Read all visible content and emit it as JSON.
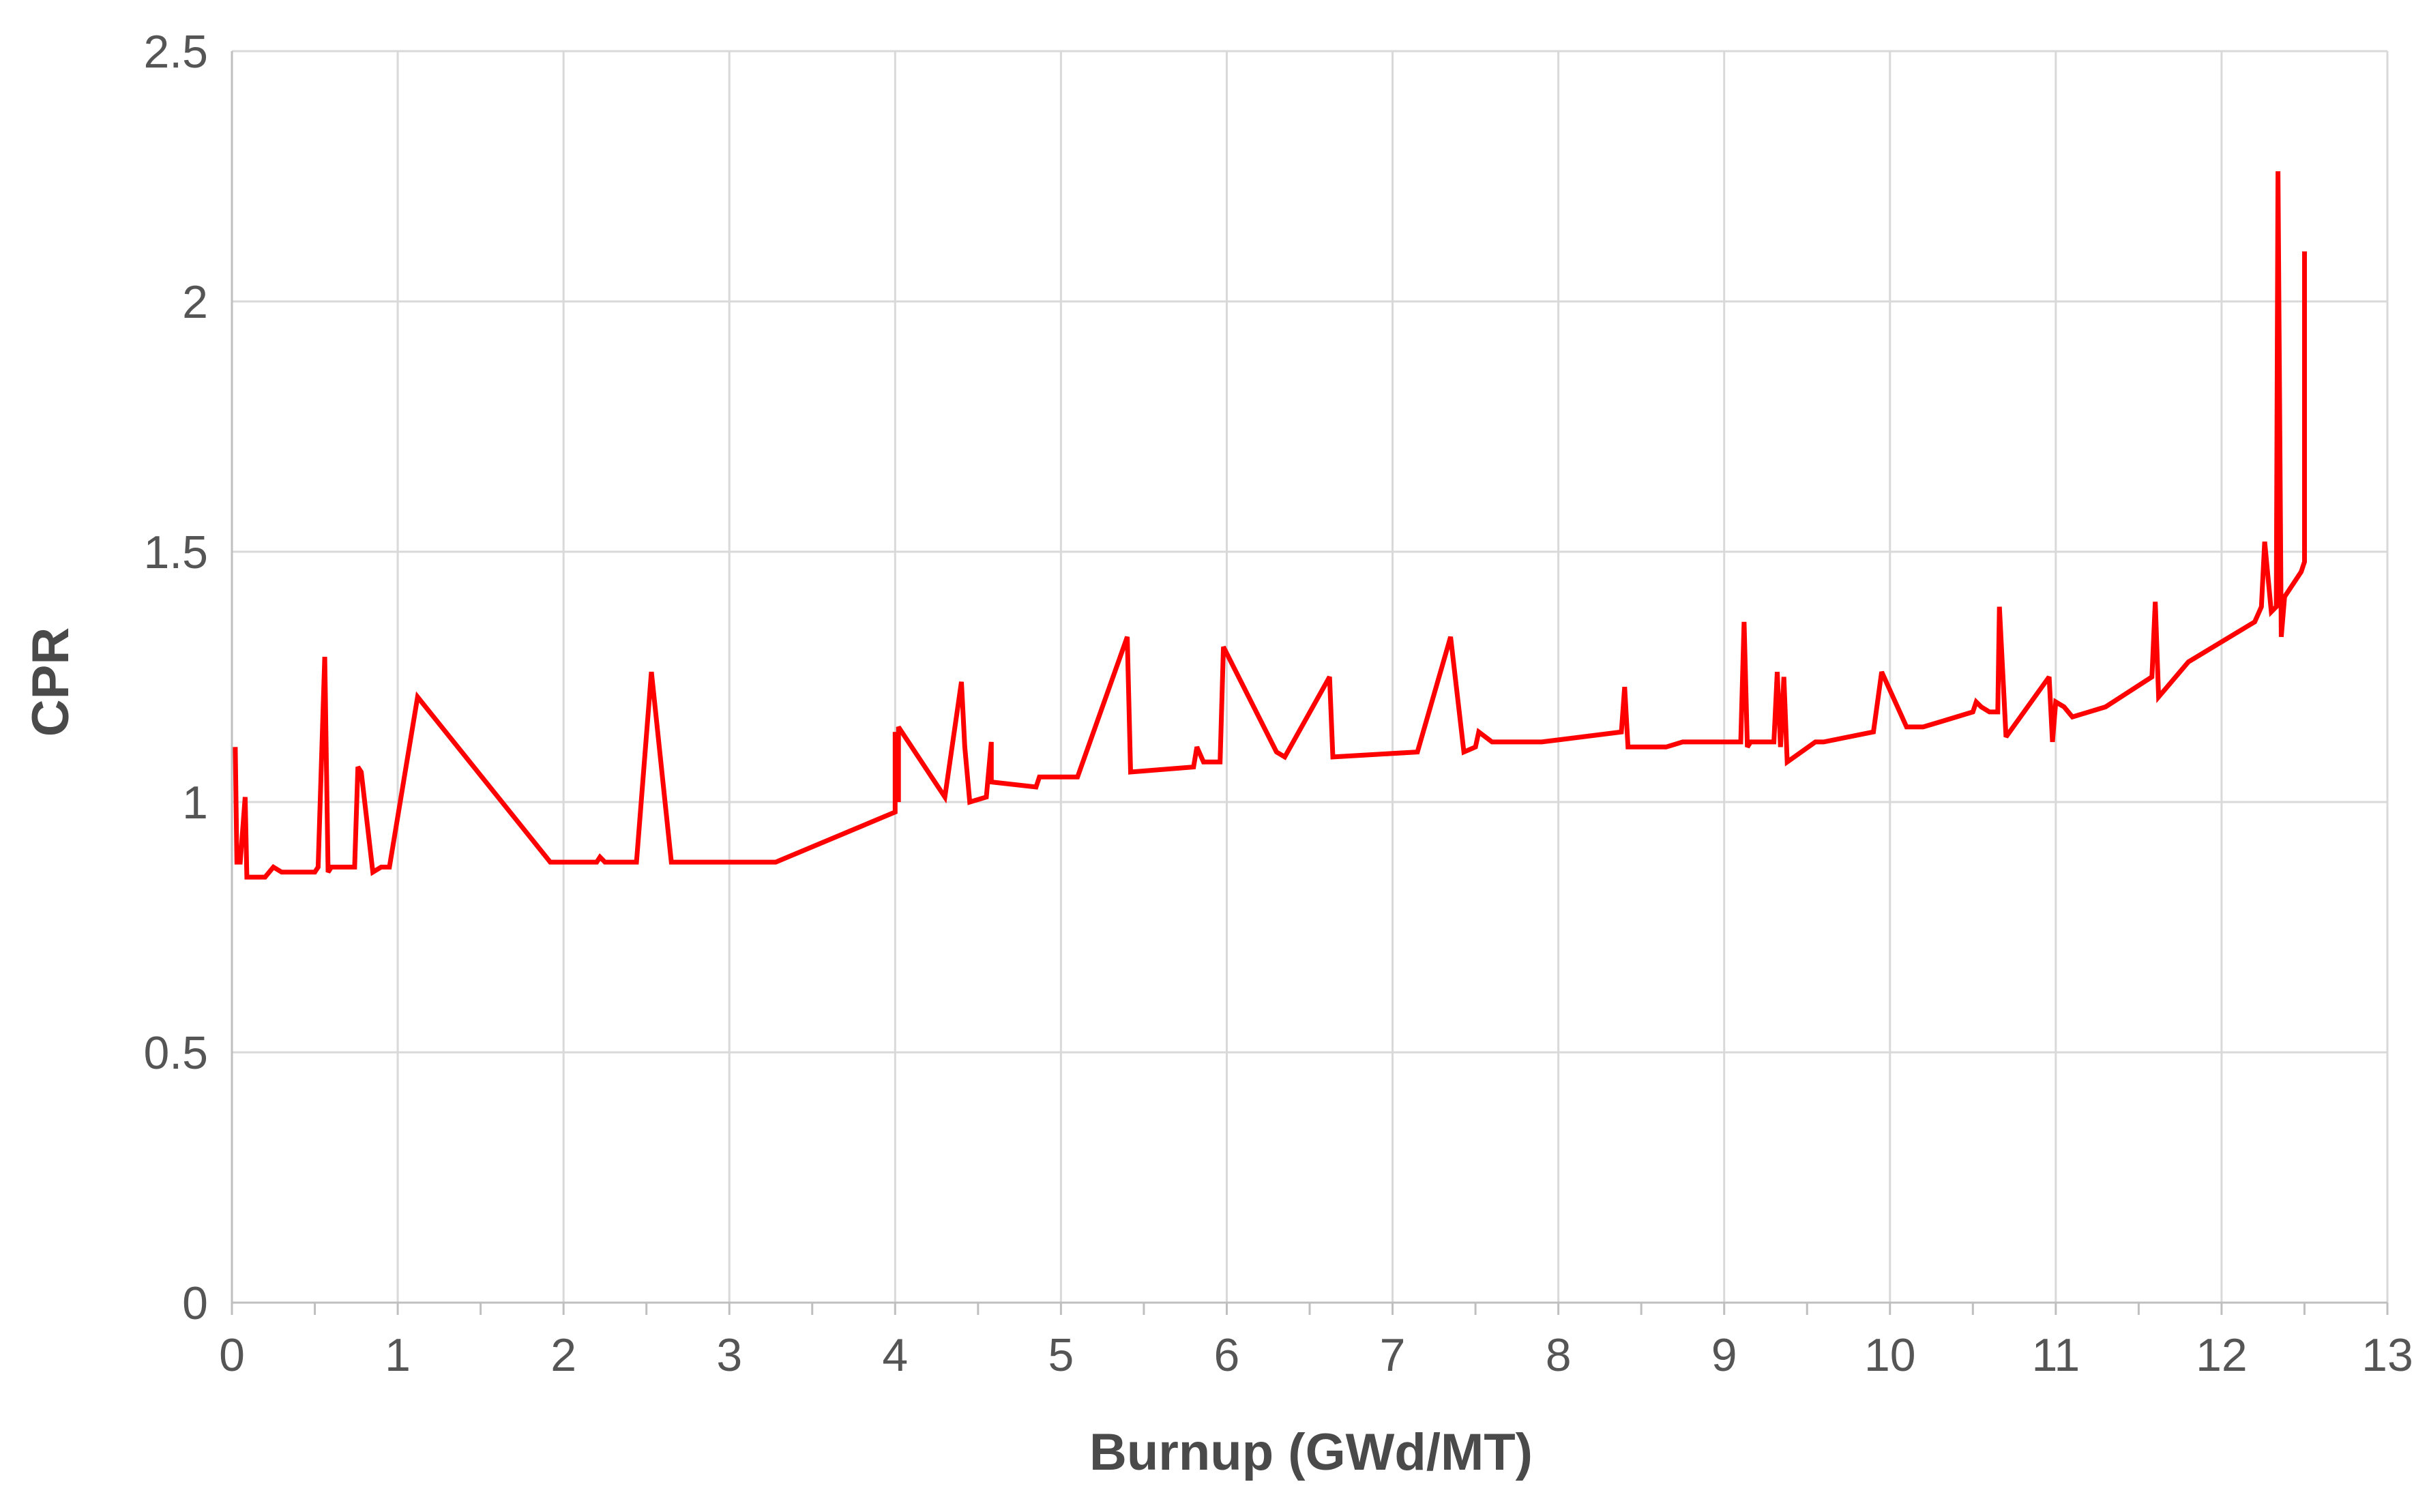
{
  "chart_data": {
    "type": "line",
    "title": "",
    "xlabel": "Burnup (GWd/MT)",
    "ylabel": "CPR",
    "xlim": [
      0,
      13
    ],
    "ylim": [
      0,
      2.5
    ],
    "x_ticks": [
      0,
      1,
      2,
      3,
      4,
      5,
      6,
      7,
      8,
      9,
      10,
      11,
      12,
      13
    ],
    "x_tick_labels": [
      "0",
      "1",
      "2",
      "3",
      "4",
      "5",
      "6",
      "7",
      "8",
      "9",
      "10",
      "11",
      "12",
      "13"
    ],
    "y_ticks": [
      0,
      0.5,
      1,
      1.5,
      2,
      2.5
    ],
    "y_tick_labels": [
      "0",
      "0.5",
      "1",
      "1.5",
      "2",
      "2.5"
    ],
    "grid": true,
    "legend": "none",
    "series": [
      {
        "color": "#ff0000",
        "x": [
          0.02,
          0.03,
          0.05,
          0.08,
          0.09,
          0.1,
          0.2,
          0.25,
          0.3,
          0.4,
          0.5,
          0.52,
          0.56,
          0.58,
          0.6,
          0.65,
          0.74,
          0.76,
          0.78,
          0.85,
          0.9,
          0.95,
          1.12,
          1.92,
          2.2,
          2.22,
          2.25,
          2.44,
          2.53,
          2.65,
          3.28,
          4.0,
          4.0,
          4.02,
          4.02,
          4.3,
          4.4,
          4.42,
          4.42,
          4.45,
          4.55,
          4.58,
          4.58,
          4.85,
          4.87,
          4.87,
          5.1,
          5.4,
          5.42,
          5.8,
          5.82,
          5.86,
          5.96,
          5.98,
          6.3,
          6.35,
          6.62,
          6.64,
          7.15,
          7.35,
          7.43,
          7.5,
          7.52,
          7.6,
          7.9,
          8.38,
          8.4,
          8.42,
          8.65,
          8.75,
          8.8,
          9.1,
          9.12,
          9.14,
          9.16,
          9.3,
          9.32,
          9.34,
          9.36,
          9.38,
          9.55,
          9.6,
          9.9,
          9.95,
          10.1,
          10.2,
          10.3,
          10.5,
          10.52,
          10.55,
          10.6,
          10.65,
          10.66,
          10.7,
          10.96,
          10.98,
          11.0,
          11.05,
          11.1,
          11.3,
          11.58,
          11.6,
          11.62,
          11.8,
          12.0,
          12.2,
          12.24,
          12.26,
          12.3,
          12.33,
          12.34,
          12.36,
          12.38,
          12.48,
          12.5,
          12.5,
          12.5
        ],
        "y": [
          1.11,
          0.88,
          0.88,
          1.01,
          0.85,
          0.85,
          0.85,
          0.87,
          0.86,
          0.86,
          0.86,
          0.87,
          1.29,
          0.86,
          0.87,
          0.87,
          0.87,
          1.07,
          1.06,
          0.86,
          0.87,
          0.87,
          1.21,
          0.88,
          0.88,
          0.89,
          0.88,
          0.88,
          1.26,
          0.88,
          0.88,
          0.98,
          1.14,
          1.0,
          1.15,
          1.01,
          1.24,
          1.11,
          1.11,
          1.0,
          1.01,
          1.12,
          1.04,
          1.03,
          1.05,
          1.05,
          1.05,
          1.33,
          1.06,
          1.07,
          1.11,
          1.08,
          1.08,
          1.31,
          1.1,
          1.09,
          1.25,
          1.09,
          1.1,
          1.33,
          1.1,
          1.11,
          1.14,
          1.12,
          1.12,
          1.14,
          1.23,
          1.11,
          1.11,
          1.12,
          1.12,
          1.12,
          1.36,
          1.11,
          1.12,
          1.12,
          1.26,
          1.11,
          1.25,
          1.08,
          1.12,
          1.12,
          1.14,
          1.26,
          1.15,
          1.15,
          1.16,
          1.18,
          1.2,
          1.19,
          1.18,
          1.18,
          1.39,
          1.13,
          1.25,
          1.12,
          1.2,
          1.19,
          1.17,
          1.19,
          1.25,
          1.4,
          1.21,
          1.28,
          1.32,
          1.36,
          1.39,
          1.52,
          1.38,
          1.39,
          2.26,
          1.33,
          1.41,
          1.46,
          1.48,
          2.1,
          1.48
        ]
      }
    ]
  }
}
